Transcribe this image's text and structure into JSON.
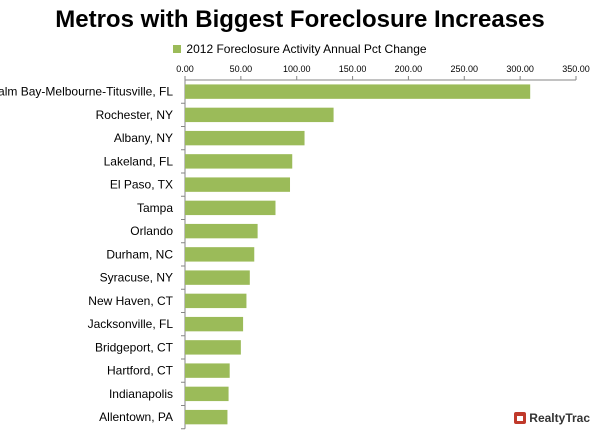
{
  "chart_data": {
    "type": "bar",
    "orientation": "horizontal",
    "title": "Metros with Biggest Foreclosure Increases",
    "categories": [
      "Palm Bay-Melbourne-Titusville, FL",
      "Rochester, NY",
      "Albany, NY",
      "Lakeland, FL",
      "El Paso, TX",
      "Tampa",
      "Orlando",
      "Durham, NC",
      "Syracuse, NY",
      "New Haven, CT",
      "Jacksonville, FL",
      "Bridgeport, CT",
      "Hartford, CT",
      "Indianapolis",
      "Allentown, PA"
    ],
    "series": [
      {
        "name": "2012 Foreclosure Activity Annual Pct Change",
        "color": "#9bbb59",
        "values": [
          309,
          133,
          107,
          96,
          94,
          81,
          65,
          62,
          58,
          55,
          52,
          50,
          40,
          39,
          38
        ]
      }
    ],
    "xlim": [
      0,
      350
    ],
    "xticks": [
      "0.00",
      "50.00",
      "100.00",
      "150.00",
      "200.00",
      "250.00",
      "300.00",
      "350.00"
    ],
    "legend_position": "top",
    "grid": false
  },
  "brand": {
    "name": "RealtyTrac",
    "icon": "house-icon"
  }
}
